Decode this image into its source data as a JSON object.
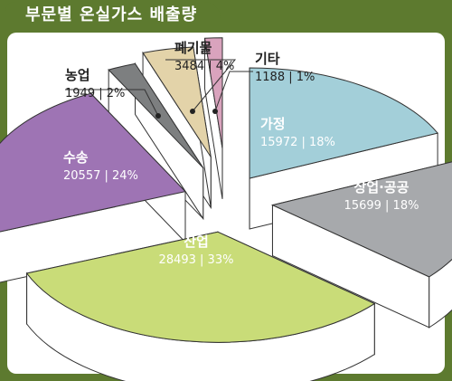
{
  "title": "부문별 온실가스 배출량",
  "chart_data": {
    "type": "pie",
    "title": "부문별 온실가스 배출량",
    "slices": [
      {
        "label": "가정",
        "value": 15972,
        "percent": "18%",
        "color": "#a3cfd9"
      },
      {
        "label": "상업·공공",
        "value": 15699,
        "percent": "18%",
        "color": "#a7a9ac"
      },
      {
        "label": "산업",
        "value": 28493,
        "percent": "33%",
        "color": "#c9dc78"
      },
      {
        "label": "수송",
        "value": 20557,
        "percent": "24%",
        "color": "#9e74b4"
      },
      {
        "label": "농업",
        "value": 1949,
        "percent": "2%",
        "color": "#7d7f80"
      },
      {
        "label": "폐기물",
        "value": 3484,
        "percent": "4%",
        "color": "#e3d3a9"
      },
      {
        "label": "기타",
        "value": 1188,
        "percent": "1%",
        "color": "#d9a3bd"
      }
    ]
  }
}
